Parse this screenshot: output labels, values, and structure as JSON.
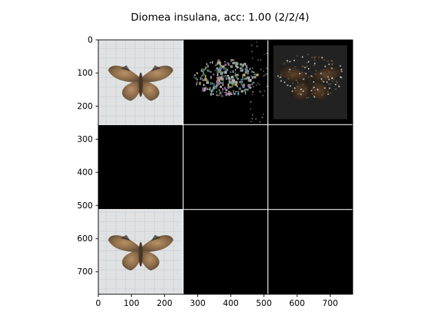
{
  "chart_data": {
    "type": "image-grid",
    "title": "Diomea insulana, acc: 1.00 (2/2/4)",
    "xlim": [
      0,
      768
    ],
    "ylim": [
      768,
      0
    ],
    "xticks": [
      0,
      100,
      200,
      300,
      400,
      500,
      600,
      700
    ],
    "yticks": [
      0,
      100,
      200,
      300,
      400,
      500,
      600,
      700
    ],
    "grid": {
      "rows": 3,
      "cols": 3,
      "tile_size": 256
    },
    "tiles": [
      {
        "row": 0,
        "col": 0,
        "content": "moth photo, wings spread, on grid paper"
      },
      {
        "row": 0,
        "col": 1,
        "content": "sparse color noise mask of moth on black"
      },
      {
        "row": 0,
        "col": 2,
        "content": "dark masked moth overlay on black"
      },
      {
        "row": 1,
        "col": 0,
        "content": "black"
      },
      {
        "row": 1,
        "col": 1,
        "content": "black"
      },
      {
        "row": 1,
        "col": 2,
        "content": "black"
      },
      {
        "row": 2,
        "col": 0,
        "content": "moth photo, wings spread, on grid paper"
      },
      {
        "row": 2,
        "col": 1,
        "content": "black"
      },
      {
        "row": 2,
        "col": 2,
        "content": "black"
      }
    ],
    "separator_color": "#ffffff",
    "background_color": "#000000"
  }
}
